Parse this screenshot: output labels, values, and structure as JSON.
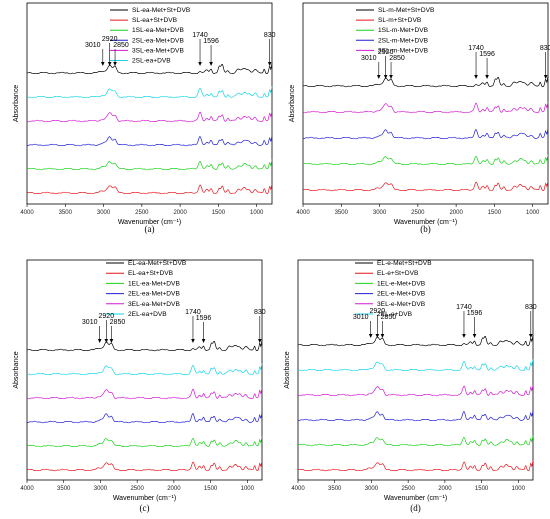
{
  "chart_data": [
    {
      "type": "line",
      "panel": "(a)",
      "xlabel": "Wavenumber (cm⁻¹)",
      "ylabel": "Absorbance",
      "xlim": [
        4000,
        800
      ],
      "x_reversed": true,
      "xticks": [
        4000,
        3500,
        3000,
        2500,
        2000,
        1500,
        1000
      ],
      "peak_labels": [
        3010,
        2920,
        2850,
        1740,
        1596,
        830
      ],
      "legend_placement": "top-center",
      "series": [
        {
          "name": "SL-ea-Met+St+DVB",
          "color": "#000000",
          "offset": 5
        },
        {
          "name": "SL-ea+St+DVB",
          "color": "#e8141c",
          "offset": 0
        },
        {
          "name": "1SL-ea-Met+DVB",
          "color": "#19d219",
          "offset": 1
        },
        {
          "name": "2SL-ea-Met+DVB",
          "color": "#1f1fd6",
          "offset": 2
        },
        {
          "name": "3SL-ea-Met+DVB",
          "color": "#d21ad2",
          "offset": 3
        },
        {
          "name": "2SL-ea+DVB",
          "color": "#16d6e6",
          "offset": 4
        }
      ]
    },
    {
      "type": "line",
      "panel": "(b)",
      "xlabel": "Wavenumber (cm⁻¹)",
      "ylabel": "Absorbance",
      "xlim": [
        4000,
        800
      ],
      "x_reversed": true,
      "xticks": [
        4000,
        3500,
        3000,
        2500,
        2000,
        1500,
        1000
      ],
      "peak_labels": [
        3010,
        2920,
        2850,
        1740,
        1596,
        830
      ],
      "legend_placement": "top-center",
      "series": [
        {
          "name": "SL-m-Met+St+DVB",
          "color": "#000000",
          "offset": 4
        },
        {
          "name": "SL-m+St+DVB",
          "color": "#e8141c",
          "offset": 0
        },
        {
          "name": "1SL-m-Met+DVB",
          "color": "#19d219",
          "offset": 1
        },
        {
          "name": "2SL-m-Met+DVB",
          "color": "#1f1fd6",
          "offset": 2
        },
        {
          "name": "3SL-m-Met+DVB",
          "color": "#d21ad2",
          "offset": 3
        }
      ]
    },
    {
      "type": "line",
      "panel": "(c)",
      "xlabel": "Wavenumber (cm⁻¹)",
      "ylabel": "Absorbance",
      "xlim": [
        4000,
        800
      ],
      "x_reversed": true,
      "xticks": [
        4000,
        3500,
        3000,
        2500,
        2000,
        1500,
        1000
      ],
      "peak_labels": [
        3010,
        2920,
        2850,
        1740,
        1596,
        830
      ],
      "legend_placement": "top-center",
      "series": [
        {
          "name": "EL-ea-Met+St+DVB",
          "color": "#000000",
          "offset": 5
        },
        {
          "name": "EL-ea+St+DVB",
          "color": "#e8141c",
          "offset": 0
        },
        {
          "name": "1EL-ea-Met+DVB",
          "color": "#19d219",
          "offset": 1
        },
        {
          "name": "2EL-ea-Met+DVB",
          "color": "#1f1fd6",
          "offset": 2
        },
        {
          "name": "3EL-ea-Met+DVB",
          "color": "#d21ad2",
          "offset": 3
        },
        {
          "name": "2EL-ea+DVB",
          "color": "#16d6e6",
          "offset": 4
        }
      ]
    },
    {
      "type": "line",
      "panel": "(d)",
      "xlabel": "Wavenumber (cm⁻¹)",
      "ylabel": "Absorbance",
      "xlim": [
        4000,
        800
      ],
      "x_reversed": true,
      "xticks": [
        4000,
        3500,
        3000,
        2500,
        2000,
        1500,
        1000
      ],
      "peak_labels": [
        3010,
        2920,
        2850,
        1740,
        1596,
        830
      ],
      "legend_placement": "top-center",
      "series": [
        {
          "name": "EL-e-Met+St+DVB",
          "color": "#000000",
          "offset": 5
        },
        {
          "name": "EL-e+St+DVB",
          "color": "#e8141c",
          "offset": 0
        },
        {
          "name": "1EL-e-Met+DVB",
          "color": "#19d219",
          "offset": 1
        },
        {
          "name": "2EL-e-Met+DVB",
          "color": "#1f1fd6",
          "offset": 2
        },
        {
          "name": "3EL-e-Met+DVB",
          "color": "#d21ad2",
          "offset": 3
        },
        {
          "name": "2EL-e+DVB",
          "color": "#16d6e6",
          "offset": 4
        }
      ]
    }
  ]
}
